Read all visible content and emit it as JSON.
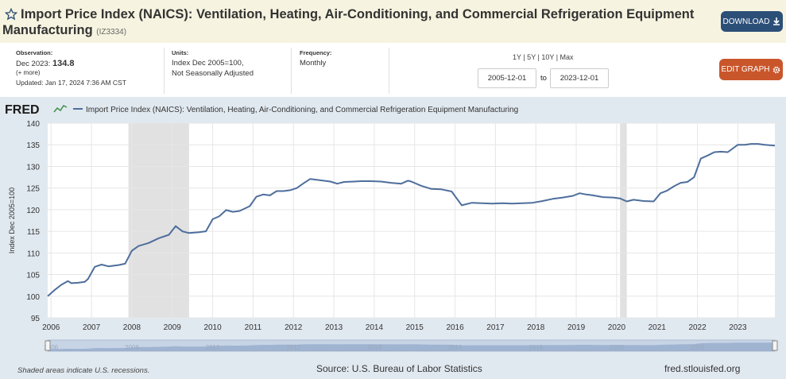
{
  "header": {
    "title": "Import Price Index (NAICS): Ventilation, Heating, Air-Conditioning, and Commercial Refrigeration Equipment",
    "title_line2": "Manufacturing",
    "series_id": "(IZ3334)",
    "download_label": "DOWNLOAD",
    "bg_color": "#f6f4e0"
  },
  "meta": {
    "observation_label": "Observation:",
    "observation_date": "Dec 2023:",
    "observation_value": "134.8",
    "more": "(+ more)",
    "updated": "Updated: Jan 17, 2024 7:36 AM CST",
    "units_label": "Units:",
    "units_line1": "Index Dec 2005=100,",
    "units_line2": "Not Seasonally Adjusted",
    "frequency_label": "Frequency:",
    "frequency": "Monthly"
  },
  "controls": {
    "range_links": "1Y | 5Y | 10Y | Max",
    "start_date": "2005-12-01",
    "to": "to",
    "end_date": "2023-12-01",
    "edit_label": "EDIT GRAPH"
  },
  "footer": {
    "note": "Shaded areas indicate U.S. recessions.",
    "source": "Source: U.S. Bureau of Labor Statistics",
    "url": "fred.stlouisfed.org"
  },
  "colors": {
    "line": "#4e6e9c",
    "recession": "#e1e1e1",
    "accent_download": "#2c4f78",
    "accent_edit": "#c9562b"
  },
  "chart_data": {
    "type": "line",
    "logo": "FRED",
    "legend": "Import Price Index (NAICS): Ventilation, Heating, Air-Conditioning, and Commercial Refrigeration Equipment Manufacturing",
    "ylabel": "Index Dec 2005=100",
    "ylim": [
      95,
      140
    ],
    "yticks": [
      95,
      100,
      105,
      110,
      115,
      120,
      125,
      130,
      135,
      140
    ],
    "xlim": [
      "2005-12-01",
      "2023-12-01"
    ],
    "xticks": [
      "2006",
      "2007",
      "2008",
      "2009",
      "2010",
      "2011",
      "2012",
      "2013",
      "2014",
      "2015",
      "2016",
      "2017",
      "2018",
      "2019",
      "2020",
      "2021",
      "2022",
      "2023"
    ],
    "grid": true,
    "recessions": [
      {
        "start": "2007-12-01",
        "end": "2009-06-01"
      },
      {
        "start": "2020-02-01",
        "end": "2020-04-01"
      }
    ],
    "series": [
      {
        "name": "Import Price Index (NAICS): Ventilation, Heating, Air-Conditioning, and Commercial Refrigeration Equipment Manufacturing",
        "points": [
          [
            "2005-12",
            100.0
          ],
          [
            "2006-02",
            101.4
          ],
          [
            "2006-04",
            102.6
          ],
          [
            "2006-06",
            103.5
          ],
          [
            "2006-07",
            103.0
          ],
          [
            "2006-09",
            103.1
          ],
          [
            "2006-11",
            103.3
          ],
          [
            "2006-12",
            104.0
          ],
          [
            "2007-02",
            106.8
          ],
          [
            "2007-04",
            107.3
          ],
          [
            "2007-06",
            106.9
          ],
          [
            "2007-09",
            107.2
          ],
          [
            "2007-11",
            107.5
          ],
          [
            "2008-01",
            110.5
          ],
          [
            "2008-03",
            111.6
          ],
          [
            "2008-06",
            112.3
          ],
          [
            "2008-09",
            113.4
          ],
          [
            "2008-12",
            114.2
          ],
          [
            "2009-02",
            116.2
          ],
          [
            "2009-04",
            115.0
          ],
          [
            "2009-06",
            114.6
          ],
          [
            "2009-09",
            114.8
          ],
          [
            "2009-11",
            115.0
          ],
          [
            "2010-01",
            117.8
          ],
          [
            "2010-03",
            118.5
          ],
          [
            "2010-05",
            119.9
          ],
          [
            "2010-07",
            119.5
          ],
          [
            "2010-09",
            119.7
          ],
          [
            "2010-12",
            120.8
          ],
          [
            "2011-02",
            123.0
          ],
          [
            "2011-04",
            123.5
          ],
          [
            "2011-06",
            123.3
          ],
          [
            "2011-08",
            124.3
          ],
          [
            "2011-10",
            124.3
          ],
          [
            "2011-12",
            124.5
          ],
          [
            "2012-02",
            125.0
          ],
          [
            "2012-04",
            126.1
          ],
          [
            "2012-06",
            127.1
          ],
          [
            "2012-09",
            126.8
          ],
          [
            "2012-12",
            126.5
          ],
          [
            "2013-02",
            126.0
          ],
          [
            "2013-04",
            126.4
          ],
          [
            "2013-07",
            126.5
          ],
          [
            "2013-09",
            126.6
          ],
          [
            "2013-12",
            126.6
          ],
          [
            "2014-03",
            126.5
          ],
          [
            "2014-06",
            126.2
          ],
          [
            "2014-09",
            126.0
          ],
          [
            "2014-11",
            126.7
          ],
          [
            "2014-12",
            126.5
          ],
          [
            "2015-03",
            125.5
          ],
          [
            "2015-06",
            124.8
          ],
          [
            "2015-09",
            124.7
          ],
          [
            "2015-12",
            124.2
          ],
          [
            "2016-03",
            121.0
          ],
          [
            "2016-06",
            121.6
          ],
          [
            "2016-09",
            121.5
          ],
          [
            "2016-12",
            121.4
          ],
          [
            "2017-03",
            121.5
          ],
          [
            "2017-06",
            121.4
          ],
          [
            "2017-09",
            121.5
          ],
          [
            "2017-12",
            121.6
          ],
          [
            "2018-03",
            122.0
          ],
          [
            "2018-06",
            122.5
          ],
          [
            "2018-09",
            122.8
          ],
          [
            "2018-12",
            123.2
          ],
          [
            "2019-02",
            123.8
          ],
          [
            "2019-04",
            123.5
          ],
          [
            "2019-06",
            123.3
          ],
          [
            "2019-09",
            122.9
          ],
          [
            "2019-12",
            122.8
          ],
          [
            "2020-02",
            122.6
          ],
          [
            "2020-04",
            121.9
          ],
          [
            "2020-06",
            122.3
          ],
          [
            "2020-09",
            122.0
          ],
          [
            "2020-12",
            121.9
          ],
          [
            "2021-02",
            123.8
          ],
          [
            "2021-04",
            124.4
          ],
          [
            "2021-06",
            125.4
          ],
          [
            "2021-08",
            126.2
          ],
          [
            "2021-10",
            126.4
          ],
          [
            "2021-12",
            127.5
          ],
          [
            "2022-02",
            131.8
          ],
          [
            "2022-04",
            132.5
          ],
          [
            "2022-06",
            133.3
          ],
          [
            "2022-08",
            133.4
          ],
          [
            "2022-10",
            133.3
          ],
          [
            "2023-01",
            135.0
          ],
          [
            "2023-03",
            135.0
          ],
          [
            "2023-05",
            135.2
          ],
          [
            "2023-07",
            135.2
          ],
          [
            "2023-09",
            135.0
          ],
          [
            "2023-12",
            134.8
          ]
        ]
      }
    ]
  }
}
